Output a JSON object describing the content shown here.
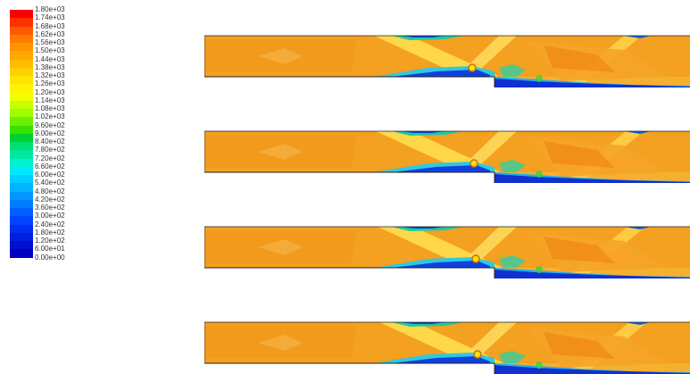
{
  "legend": {
    "labels": [
      "1.80e+03",
      "1.74e+03",
      "1.68e+03",
      "1.62e+03",
      "1.56e+03",
      "1.50e+03",
      "1.44e+03",
      "1.38e+03",
      "1.32e+03",
      "1.26e+03",
      "1.20e+03",
      "1.14e+03",
      "1.08e+03",
      "1.02e+03",
      "9.60e+02",
      "9.00e+02",
      "8.40e+02",
      "7.80e+02",
      "7.20e+02",
      "6.60e+02",
      "6.00e+02",
      "5.40e+02",
      "4.80e+02",
      "4.20e+02",
      "3.60e+02",
      "3.00e+02",
      "2.40e+02",
      "1.80e+02",
      "1.20e+02",
      "6.00e+01",
      "0.00e+00"
    ],
    "colors": [
      "#ff0000",
      "#ff3000",
      "#ff5a00",
      "#ff7a00",
      "#ff9400",
      "#ffa800",
      "#ffbc00",
      "#ffd000",
      "#ffe400",
      "#fff400",
      "#f0ff00",
      "#c8ff00",
      "#9cff00",
      "#6cf000",
      "#38e000",
      "#00d030",
      "#00e070",
      "#00e8a0",
      "#00f0d0",
      "#00e8ff",
      "#00d0ff",
      "#00b4ff",
      "#0098ff",
      "#007cff",
      "#0060ff",
      "#0044ff",
      "#0030f0",
      "#0020e0",
      "#0010d0",
      "#0000c0"
    ]
  },
  "panels": [
    "panel-1",
    "panel-2",
    "panel-3",
    "panel-4"
  ]
}
